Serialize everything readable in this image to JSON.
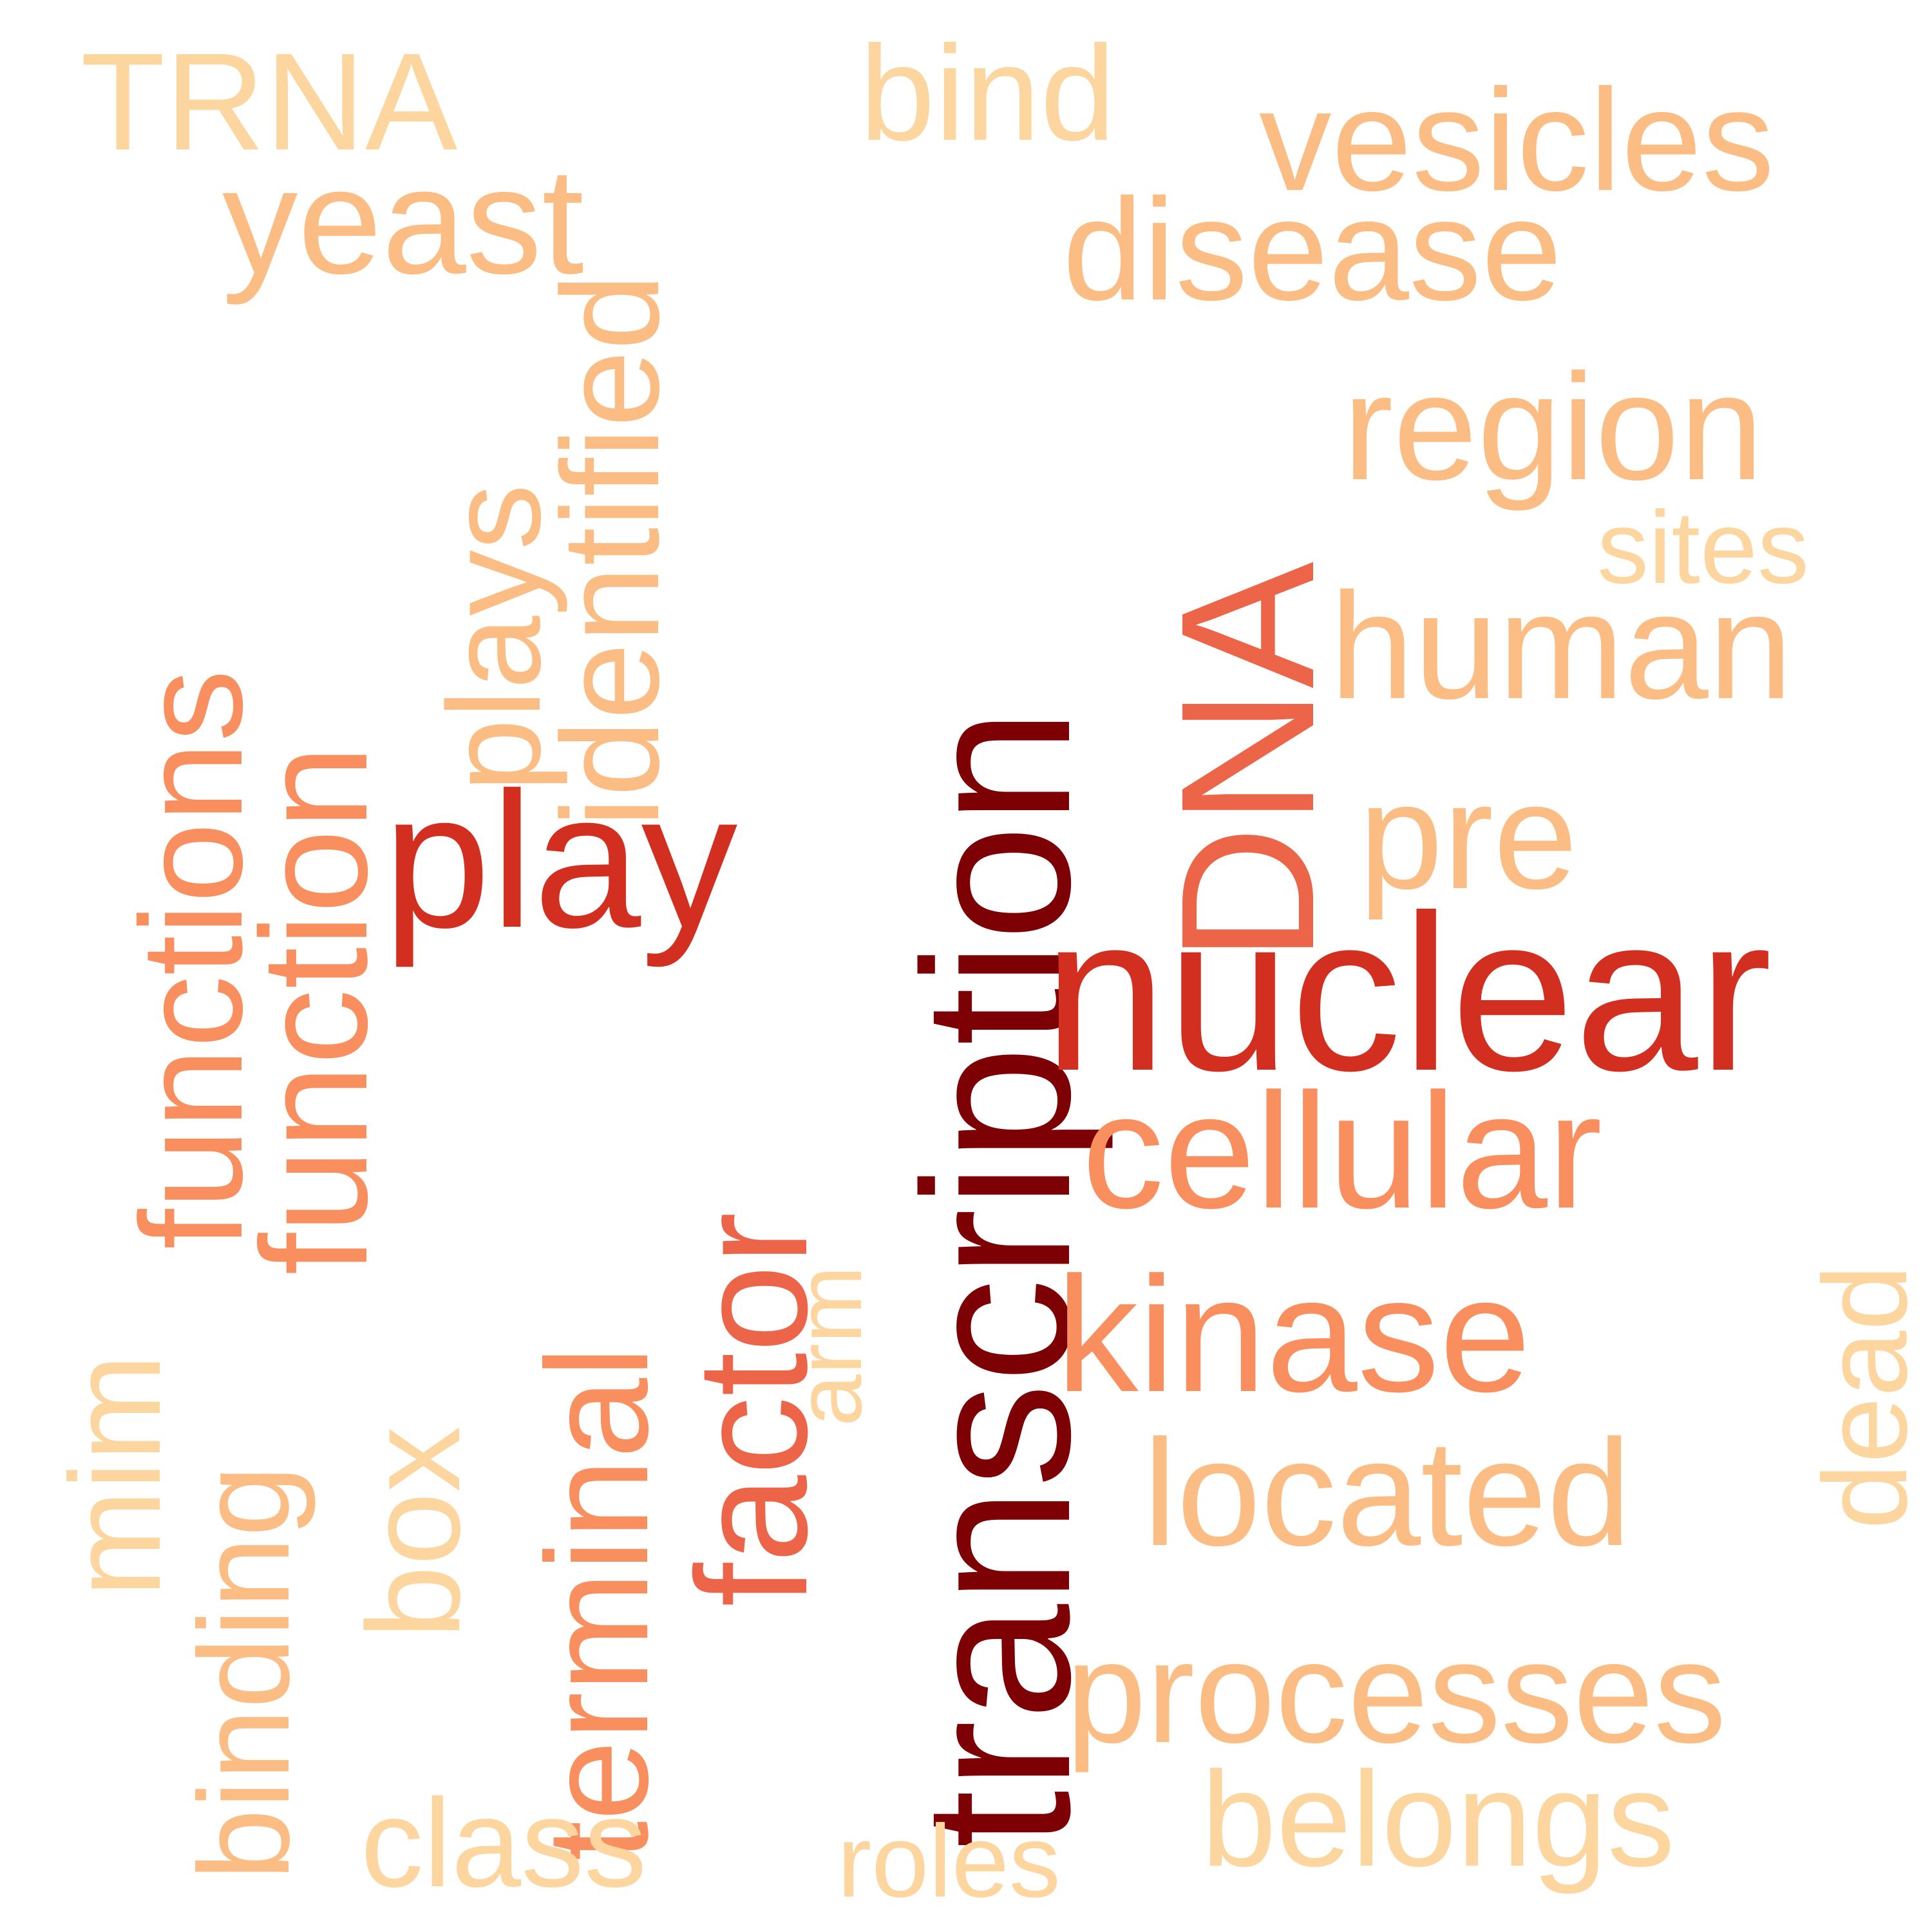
{
  "colors": {
    "darkest": "#7c0004",
    "red": "#d32f20",
    "coral": "#ec6548",
    "orange": "#f98f5e",
    "light_orange": "#fbbd83",
    "pale": "#fdd59f"
  },
  "words": {
    "transcription": "transcription",
    "DNA": "DNA",
    "nuclear": "nuclear",
    "play": "play",
    "factor": "factor",
    "function": "function",
    "functions": "functions",
    "terminal": "terminal",
    "cellular": "cellular",
    "kinase": "kinase",
    "identified": "identified",
    "plays": "plays",
    "yeast": "yeast",
    "vesicles": "vesicles",
    "disease": "disease",
    "region": "region",
    "human": "human",
    "pre": "pre",
    "located": "located",
    "processes": "processes",
    "TRNA": "TRNA",
    "bind": "bind",
    "sites": "sites",
    "dead": "dead",
    "binding": "binding",
    "box": "box",
    "mim": "mim",
    "arm": "arm",
    "class": "class",
    "roles": "roles",
    "belongs": "belongs"
  }
}
